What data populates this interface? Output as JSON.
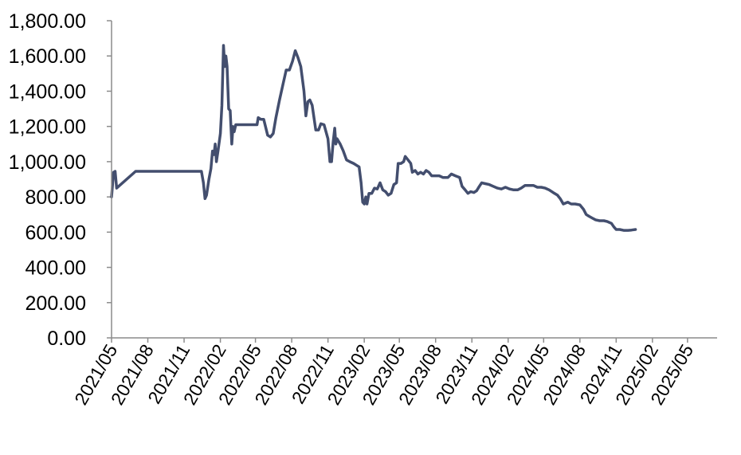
{
  "chart_data": {
    "type": "line",
    "title": "",
    "xlabel": "",
    "ylabel": "",
    "ylim": [
      0,
      1800
    ],
    "grid": false,
    "legend": "none",
    "y_ticks": [
      0,
      200,
      400,
      600,
      800,
      1000,
      1200,
      1400,
      1600,
      1800
    ],
    "y_tick_labels": [
      "0.00",
      "200.00",
      "400.00",
      "600.00",
      "800.00",
      "1,000.00",
      "1,200.00",
      "1,400.00",
      "1,600.00",
      "1,800.00"
    ],
    "x_ticks": [
      "2021/05",
      "2021/08",
      "2021/11",
      "2022/02",
      "2022/05",
      "2022/08",
      "2022/11",
      "2023/02",
      "2023/05",
      "2023/08",
      "2023/11",
      "2024/02",
      "2024/05",
      "2024/08",
      "2024/11",
      "2025/02",
      "2025/05"
    ],
    "x_range": [
      "2021/05",
      "2025/07"
    ],
    "series": [
      {
        "color": "#434e6e",
        "points": [
          [
            "2021/05/01",
            800
          ],
          [
            "2021/05/06",
            940
          ],
          [
            "2021/05/10",
            945
          ],
          [
            "2021/05/14",
            850
          ],
          [
            "2021/07/01",
            945
          ],
          [
            "2021/08/15",
            945
          ],
          [
            "2021/10/01",
            945
          ],
          [
            "2021/11/15",
            945
          ],
          [
            "2021/12/15",
            945
          ],
          [
            "2021/12/20",
            880
          ],
          [
            "2021/12/24",
            790
          ],
          [
            "2021/12/28",
            810
          ],
          [
            "2022/01/03",
            900
          ],
          [
            "2022/01/08",
            960
          ],
          [
            "2022/01/12",
            1060
          ],
          [
            "2022/01/16",
            1040
          ],
          [
            "2022/01/19",
            1100
          ],
          [
            "2022/01/22",
            1000
          ],
          [
            "2022/01/26",
            1060
          ],
          [
            "2022/02/01",
            1160
          ],
          [
            "2022/02/05",
            1320
          ],
          [
            "2022/02/09",
            1660
          ],
          [
            "2022/02/12",
            1540
          ],
          [
            "2022/02/15",
            1600
          ],
          [
            "2022/02/18",
            1540
          ],
          [
            "2022/02/22",
            1300
          ],
          [
            "2022/02/26",
            1290
          ],
          [
            "2022/03/02",
            1100
          ],
          [
            "2022/03/05",
            1200
          ],
          [
            "2022/03/08",
            1170
          ],
          [
            "2022/03/12",
            1210
          ],
          [
            "2022/04/01",
            1210
          ],
          [
            "2022/04/20",
            1210
          ],
          [
            "2022/05/05",
            1210
          ],
          [
            "2022/05/08",
            1250
          ],
          [
            "2022/05/15",
            1240
          ],
          [
            "2022/05/22",
            1240
          ],
          [
            "2022/06/01",
            1150
          ],
          [
            "2022/06/08",
            1140
          ],
          [
            "2022/06/15",
            1160
          ],
          [
            "2022/06/22",
            1250
          ],
          [
            "2022/07/01",
            1350
          ],
          [
            "2022/07/10",
            1440
          ],
          [
            "2022/07/18",
            1520
          ],
          [
            "2022/07/26",
            1520
          ],
          [
            "2022/08/03",
            1570
          ],
          [
            "2022/08/10",
            1630
          ],
          [
            "2022/08/17",
            1590
          ],
          [
            "2022/08/24",
            1540
          ],
          [
            "2022/09/01",
            1400
          ],
          [
            "2022/09/06",
            1260
          ],
          [
            "2022/09/11",
            1340
          ],
          [
            "2022/09/16",
            1350
          ],
          [
            "2022/09/22",
            1320
          ],
          [
            "2022/10/01",
            1180
          ],
          [
            "2022/10/08",
            1180
          ],
          [
            "2022/10/14",
            1215
          ],
          [
            "2022/10/22",
            1210
          ],
          [
            "2022/11/01",
            1130
          ],
          [
            "2022/11/06",
            1000
          ],
          [
            "2022/11/10",
            1000
          ],
          [
            "2022/11/14",
            1110
          ],
          [
            "2022/11/18",
            1190
          ],
          [
            "2022/11/21",
            1100
          ],
          [
            "2022/11/24",
            1130
          ],
          [
            "2022/12/02",
            1100
          ],
          [
            "2022/12/10",
            1060
          ],
          [
            "2022/12/18",
            1010
          ],
          [
            "2022/12/26",
            1000
          ],
          [
            "2023/01/05",
            990
          ],
          [
            "2023/01/12",
            980
          ],
          [
            "2023/01/19",
            970
          ],
          [
            "2023/01/24",
            880
          ],
          [
            "2023/01/28",
            770
          ],
          [
            "2023/02/01",
            760
          ],
          [
            "2023/02/05",
            800
          ],
          [
            "2023/02/08",
            760
          ],
          [
            "2023/02/13",
            820
          ],
          [
            "2023/02/20",
            820
          ],
          [
            "2023/02/27",
            850
          ],
          [
            "2023/03/06",
            845
          ],
          [
            "2023/03/13",
            880
          ],
          [
            "2023/03/20",
            840
          ],
          [
            "2023/03/27",
            830
          ],
          [
            "2023/04/03",
            810
          ],
          [
            "2023/04/10",
            820
          ],
          [
            "2023/04/17",
            870
          ],
          [
            "2023/04/24",
            880
          ],
          [
            "2023/04/28",
            990
          ],
          [
            "2023/05/05",
            990
          ],
          [
            "2023/05/12",
            1000
          ],
          [
            "2023/05/16",
            1030
          ],
          [
            "2023/05/23",
            1010
          ],
          [
            "2023/05/30",
            990
          ],
          [
            "2023/06/03",
            940
          ],
          [
            "2023/06/10",
            950
          ],
          [
            "2023/06/17",
            930
          ],
          [
            "2023/06/24",
            940
          ],
          [
            "2023/07/01",
            930
          ],
          [
            "2023/07/08",
            950
          ],
          [
            "2023/07/15",
            940
          ],
          [
            "2023/07/22",
            920
          ],
          [
            "2023/08/01",
            920
          ],
          [
            "2023/08/10",
            920
          ],
          [
            "2023/08/20",
            910
          ],
          [
            "2023/09/01",
            910
          ],
          [
            "2023/09/10",
            930
          ],
          [
            "2023/09/20",
            920
          ],
          [
            "2023/10/01",
            910
          ],
          [
            "2023/10/07",
            860
          ],
          [
            "2023/10/15",
            840
          ],
          [
            "2023/10/22",
            820
          ],
          [
            "2023/10/29",
            830
          ],
          [
            "2023/11/06",
            825
          ],
          [
            "2023/11/13",
            835
          ],
          [
            "2023/11/20",
            860
          ],
          [
            "2023/11/26",
            880
          ],
          [
            "2023/12/05",
            875
          ],
          [
            "2023/12/15",
            870
          ],
          [
            "2023/12/25",
            860
          ],
          [
            "2024/01/05",
            850
          ],
          [
            "2024/01/15",
            845
          ],
          [
            "2024/01/25",
            855
          ],
          [
            "2024/02/05",
            845
          ],
          [
            "2024/02/15",
            840
          ],
          [
            "2024/02/25",
            840
          ],
          [
            "2024/03/05",
            850
          ],
          [
            "2024/03/15",
            865
          ],
          [
            "2024/03/25",
            865
          ],
          [
            "2024/04/05",
            865
          ],
          [
            "2024/04/15",
            855
          ],
          [
            "2024/04/25",
            855
          ],
          [
            "2024/05/05",
            850
          ],
          [
            "2024/05/15",
            840
          ],
          [
            "2024/05/25",
            825
          ],
          [
            "2024/06/05",
            810
          ],
          [
            "2024/06/12",
            790
          ],
          [
            "2024/06/20",
            760
          ],
          [
            "2024/07/01",
            770
          ],
          [
            "2024/07/10",
            760
          ],
          [
            "2024/07/20",
            760
          ],
          [
            "2024/08/01",
            755
          ],
          [
            "2024/08/10",
            730
          ],
          [
            "2024/08/17",
            700
          ],
          [
            "2024/08/24",
            690
          ],
          [
            "2024/09/01",
            680
          ],
          [
            "2024/09/10",
            670
          ],
          [
            "2024/09/20",
            665
          ],
          [
            "2024/10/01",
            665
          ],
          [
            "2024/10/10",
            660
          ],
          [
            "2024/10/20",
            650
          ],
          [
            "2024/10/26",
            630
          ],
          [
            "2024/11/01",
            615
          ],
          [
            "2024/11/10",
            615
          ],
          [
            "2024/11/20",
            610
          ],
          [
            "2024/12/01",
            610
          ],
          [
            "2024/12/10",
            612
          ],
          [
            "2024/12/20",
            615
          ]
        ]
      }
    ]
  }
}
